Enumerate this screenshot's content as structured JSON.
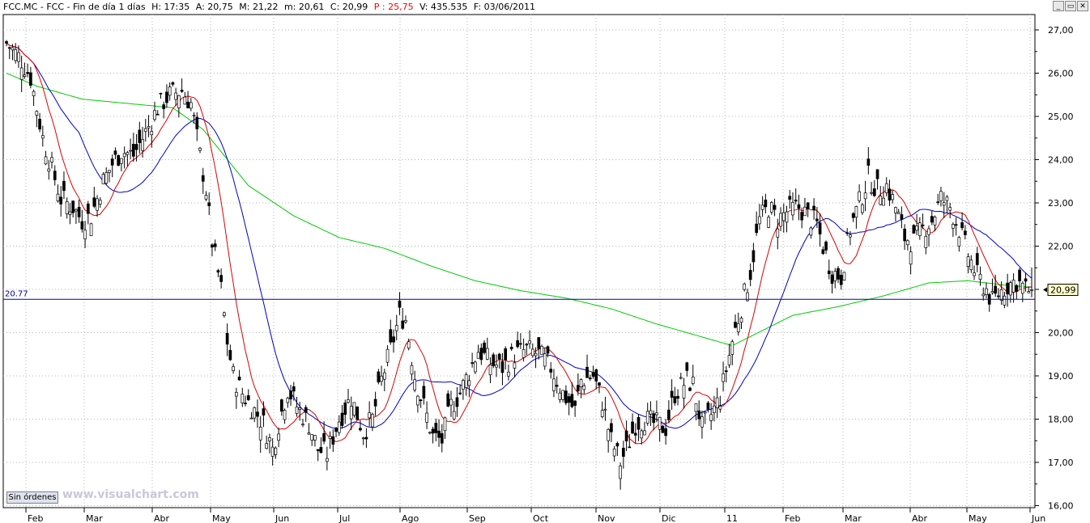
{
  "header": {
    "symbol": "FCC.MC - FCC - Fin de día 1 días",
    "h": "H: 17:35",
    "a": "A: 20,75",
    "m": "M: 21,22",
    "mn": "m: 20,61",
    "c": "C: 20,99",
    "p": "P : 25,75",
    "v": "V: 435.535",
    "f": "F: 03/06/2011"
  },
  "controls": {
    "min": "_",
    "restore": "▭",
    "close": "✕"
  },
  "button_label": "Sin órdenes",
  "watermark": "www.visualchart.com",
  "chart_data": {
    "type": "candlestick",
    "y_ticks": [
      "27,00",
      "26,00",
      "25,00",
      "24,00",
      "23,00",
      "22,00",
      "21,00",
      "20,00",
      "19,00",
      "18,00",
      "17,00",
      "16,00"
    ],
    "ylim": [
      16,
      27.2
    ],
    "x_ticks": [
      "Feb",
      "Mar",
      "Abr",
      "May",
      "Jun",
      "Jul",
      "Ago",
      "Sep",
      "Oct",
      "Nov",
      "Dic",
      "11",
      "Feb",
      "Mar",
      "Abr",
      "May",
      "Jun"
    ],
    "hline": {
      "value": 20.77,
      "label": "20.77",
      "color": "#0000aa"
    },
    "last_price_label": "20,99",
    "last_price": 20.99,
    "colors": {
      "grid": "#b4b4b4",
      "axis": "#000000",
      "ma_fast": "#dd0000",
      "ma_mid": "#0000cc",
      "ma_slow": "#00cc00",
      "candle": "#000000"
    },
    "candles_n": 340,
    "close_path": [
      [
        0,
        26.7
      ],
      [
        5,
        26.3
      ],
      [
        8,
        25.9
      ],
      [
        10,
        25.2
      ],
      [
        12,
        24.5
      ],
      [
        15,
        23.8
      ],
      [
        18,
        23.1
      ],
      [
        22,
        22.9
      ],
      [
        25,
        22.6
      ],
      [
        28,
        22.7
      ],
      [
        30,
        23.1
      ],
      [
        32,
        23.5
      ],
      [
        35,
        23.9
      ],
      [
        38,
        24.2
      ],
      [
        42,
        24.1
      ],
      [
        45,
        24.5
      ],
      [
        48,
        24.9
      ],
      [
        50,
        25.2
      ],
      [
        54,
        25.5
      ],
      [
        58,
        25.6
      ],
      [
        61,
        25.3
      ],
      [
        63,
        24.5
      ],
      [
        66,
        23.3
      ],
      [
        68,
        22.1
      ],
      [
        71,
        21.0
      ],
      [
        73,
        19.8
      ],
      [
        75,
        19.0
      ],
      [
        78,
        18.6
      ],
      [
        82,
        18.2
      ],
      [
        85,
        17.9
      ],
      [
        88,
        17.3
      ],
      [
        90,
        17.9
      ],
      [
        93,
        18.7
      ],
      [
        96,
        18.3
      ],
      [
        100,
        17.9
      ],
      [
        103,
        17.3
      ],
      [
        106,
        17.2
      ],
      [
        110,
        18.0
      ],
      [
        114,
        18.5
      ],
      [
        118,
        17.7
      ],
      [
        121,
        18.0
      ],
      [
        124,
        18.9
      ],
      [
        127,
        19.6
      ],
      [
        130,
        20.4
      ],
      [
        132,
        20.3
      ],
      [
        135,
        19.0
      ],
      [
        138,
        18.3
      ],
      [
        141,
        17.6
      ],
      [
        144,
        17.5
      ],
      [
        147,
        18.3
      ],
      [
        150,
        18.6
      ],
      [
        153,
        19.1
      ],
      [
        156,
        19.6
      ],
      [
        160,
        19.3
      ],
      [
        164,
        19.2
      ],
      [
        168,
        19.5
      ],
      [
        172,
        19.6
      ],
      [
        176,
        19.5
      ],
      [
        180,
        19.2
      ],
      [
        184,
        18.6
      ],
      [
        188,
        18.2
      ],
      [
        190,
        18.9
      ],
      [
        194,
        19.0
      ],
      [
        197,
        18.4
      ],
      [
        200,
        17.5
      ],
      [
        203,
        17.0
      ],
      [
        205,
        17.3
      ],
      [
        208,
        17.9
      ],
      [
        211,
        18.0
      ],
      [
        214,
        17.9
      ],
      [
        218,
        17.8
      ],
      [
        221,
        18.6
      ],
      [
        225,
        18.9
      ],
      [
        227,
        18.8
      ],
      [
        230,
        17.8
      ],
      [
        233,
        18.1
      ],
      [
        236,
        18.5
      ],
      [
        240,
        19.8
      ],
      [
        243,
        20.6
      ],
      [
        246,
        21.4
      ],
      [
        249,
        22.6
      ],
      [
        252,
        22.9
      ],
      [
        255,
        22.6
      ],
      [
        258,
        22.8
      ],
      [
        262,
        22.9
      ],
      [
        265,
        22.7
      ],
      [
        268,
        22.5
      ],
      [
        270,
        22.0
      ],
      [
        273,
        21.4
      ],
      [
        276,
        21.3
      ],
      [
        279,
        22.4
      ],
      [
        282,
        23.0
      ],
      [
        285,
        23.6
      ],
      [
        288,
        23.3
      ],
      [
        291,
        23.4
      ],
      [
        294,
        22.9
      ],
      [
        297,
        22.2
      ],
      [
        300,
        22.1
      ],
      [
        303,
        22.4
      ],
      [
        306,
        22.6
      ],
      [
        309,
        23.1
      ],
      [
        312,
        22.9
      ],
      [
        315,
        22.4
      ],
      [
        318,
        21.8
      ],
      [
        321,
        21.3
      ],
      [
        324,
        21.0
      ],
      [
        326,
        20.7
      ],
      [
        328,
        20.9
      ],
      [
        331,
        21.1
      ],
      [
        334,
        21.2
      ],
      [
        337,
        21.0
      ],
      [
        339,
        20.99
      ]
    ],
    "ma_fast_len": 10,
    "ma_mid_len": 25,
    "ma_slow_path": [
      [
        0,
        26.0
      ],
      [
        10,
        25.7
      ],
      [
        25,
        25.4
      ],
      [
        40,
        25.3
      ],
      [
        55,
        25.2
      ],
      [
        65,
        24.7
      ],
      [
        80,
        23.4
      ],
      [
        95,
        22.7
      ],
      [
        110,
        22.2
      ],
      [
        125,
        21.95
      ],
      [
        140,
        21.55
      ],
      [
        155,
        21.2
      ],
      [
        170,
        20.97
      ],
      [
        185,
        20.8
      ],
      [
        200,
        20.55
      ],
      [
        215,
        20.2
      ],
      [
        230,
        19.9
      ],
      [
        240,
        19.7
      ],
      [
        250,
        20.05
      ],
      [
        260,
        20.4
      ],
      [
        275,
        20.6
      ],
      [
        290,
        20.85
      ],
      [
        305,
        21.15
      ],
      [
        318,
        21.2
      ],
      [
        330,
        21.1
      ],
      [
        339,
        21.05
      ]
    ]
  }
}
